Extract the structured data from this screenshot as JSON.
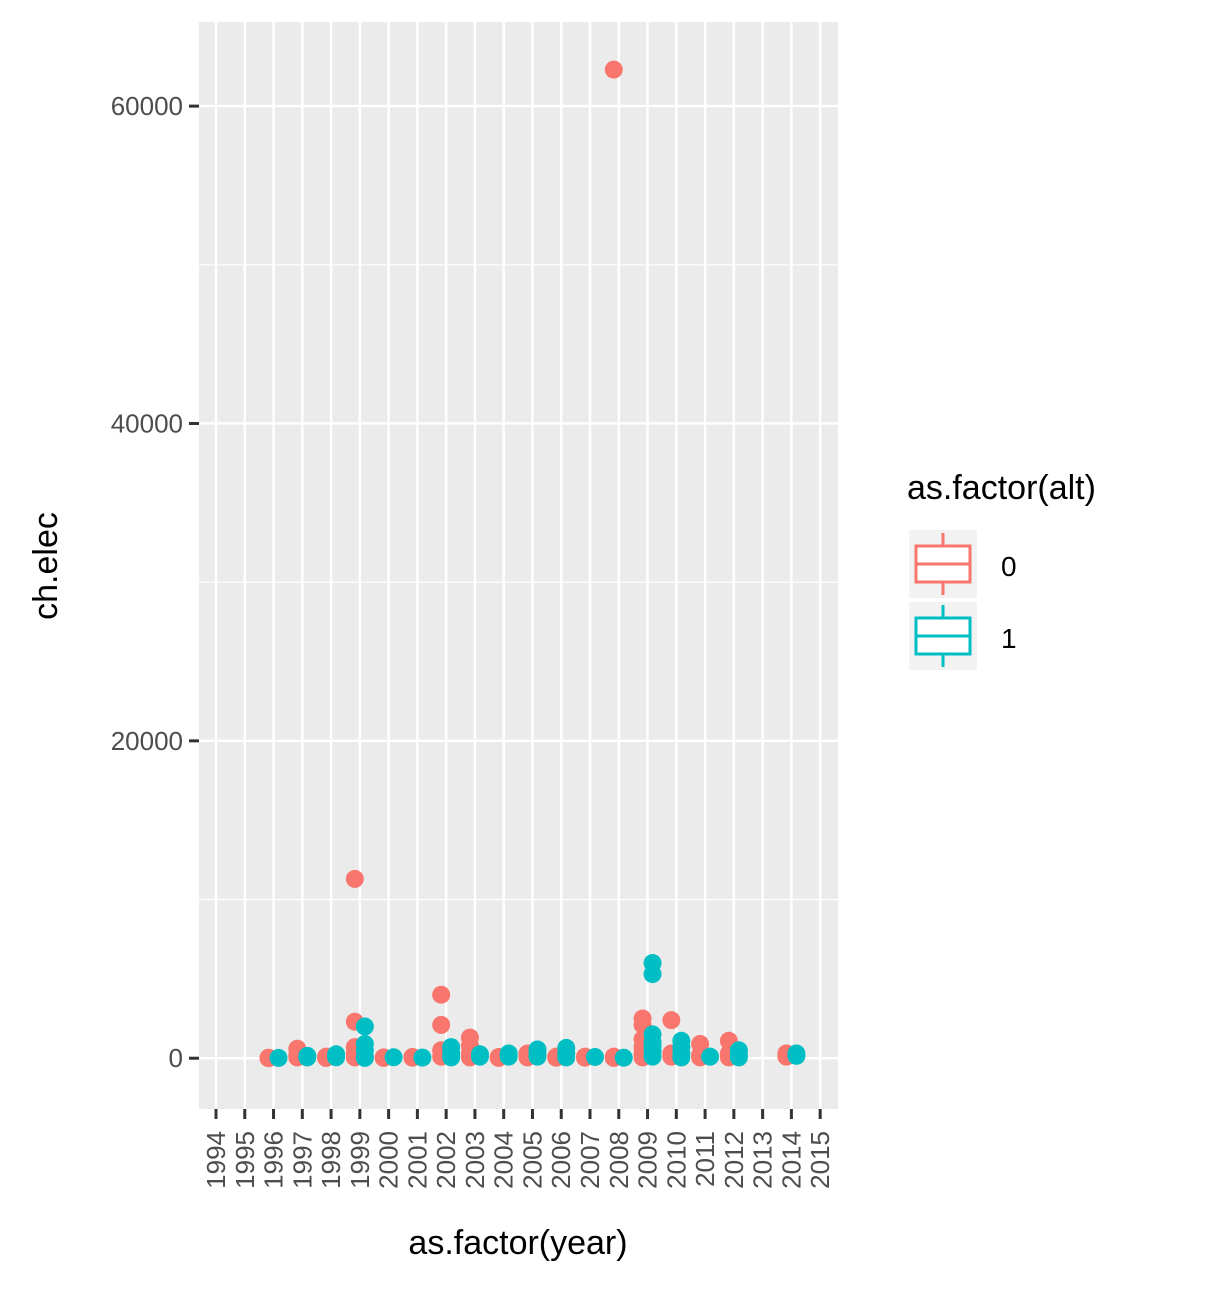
{
  "chart_data": {
    "type": "scatter",
    "xlabel": "as.factor(year)",
    "ylabel": "ch.elec",
    "categories": [
      "1994",
      "1995",
      "1996",
      "1997",
      "1998",
      "1999",
      "2000",
      "2001",
      "2002",
      "2003",
      "2004",
      "2005",
      "2006",
      "2007",
      "2008",
      "2009",
      "2010",
      "2011",
      "2012",
      "2013",
      "2014",
      "2015"
    ],
    "yticks": [
      0,
      20000,
      40000,
      60000
    ],
    "ytick_labels": [
      "0",
      "20000",
      "40000",
      "60000"
    ],
    "ylim": [
      -3200,
      65300
    ],
    "grid": true,
    "legend": {
      "title": "as.factor(alt)",
      "position": "right",
      "glyph": "boxplot",
      "entries": [
        {
          "label": "0",
          "color": "#F8766D"
        },
        {
          "label": "1",
          "color": "#00BFC4"
        }
      ]
    },
    "series": [
      {
        "name": "0",
        "color": "#F8766D",
        "points": [
          [
            "1996",
            0
          ],
          [
            "1996",
            30
          ],
          [
            "1997",
            50
          ],
          [
            "1997",
            600
          ],
          [
            "1997",
            200
          ],
          [
            "1998",
            100
          ],
          [
            "1998",
            20
          ],
          [
            "1999",
            11300
          ],
          [
            "1999",
            2300
          ],
          [
            "1999",
            700
          ],
          [
            "1999",
            300
          ],
          [
            "1999",
            50
          ],
          [
            "2000",
            50
          ],
          [
            "2000",
            20
          ],
          [
            "2001",
            30
          ],
          [
            "2001",
            80
          ],
          [
            "2002",
            4000
          ],
          [
            "2002",
            2100
          ],
          [
            "2002",
            500
          ],
          [
            "2002",
            100
          ],
          [
            "2003",
            1300
          ],
          [
            "2003",
            800
          ],
          [
            "2003",
            300
          ],
          [
            "2003",
            50
          ],
          [
            "2004",
            20
          ],
          [
            "2004",
            80
          ],
          [
            "2005",
            300
          ],
          [
            "2005",
            50
          ],
          [
            "2006",
            30
          ],
          [
            "2006",
            100
          ],
          [
            "2007",
            30
          ],
          [
            "2007",
            100
          ],
          [
            "2008",
            62300
          ],
          [
            "2008",
            100
          ],
          [
            "2008",
            20
          ],
          [
            "2009",
            2500
          ],
          [
            "2009",
            2100
          ],
          [
            "2009",
            1200
          ],
          [
            "2009",
            700
          ],
          [
            "2009",
            300
          ],
          [
            "2009",
            50
          ],
          [
            "2010",
            2400
          ],
          [
            "2010",
            300
          ],
          [
            "2010",
            100
          ],
          [
            "2011",
            900
          ],
          [
            "2011",
            200
          ],
          [
            "2011",
            50
          ],
          [
            "2012",
            1100
          ],
          [
            "2012",
            300
          ],
          [
            "2012",
            50
          ],
          [
            "2014",
            300
          ],
          [
            "2014",
            100
          ]
        ]
      },
      {
        "name": "1",
        "color": "#00BFC4",
        "points": [
          [
            "1996",
            20
          ],
          [
            "1997",
            50
          ],
          [
            "1997",
            150
          ],
          [
            "1998",
            60
          ],
          [
            "1998",
            250
          ],
          [
            "1999",
            2000
          ],
          [
            "1999",
            900
          ],
          [
            "1999",
            500
          ],
          [
            "1999",
            100
          ],
          [
            "1999",
            20
          ],
          [
            "2000",
            60
          ],
          [
            "2001",
            40
          ],
          [
            "2002",
            700
          ],
          [
            "2002",
            300
          ],
          [
            "2002",
            50
          ],
          [
            "2003",
            100
          ],
          [
            "2003",
            250
          ],
          [
            "2004",
            300
          ],
          [
            "2004",
            100
          ],
          [
            "2005",
            550
          ],
          [
            "2005",
            300
          ],
          [
            "2005",
            100
          ],
          [
            "2006",
            650
          ],
          [
            "2006",
            300
          ],
          [
            "2006",
            50
          ],
          [
            "2007",
            80
          ],
          [
            "2008",
            30
          ],
          [
            "2009",
            6000
          ],
          [
            "2009",
            5300
          ],
          [
            "2009",
            1500
          ],
          [
            "2009",
            1000
          ],
          [
            "2009",
            700
          ],
          [
            "2009",
            400
          ],
          [
            "2009",
            100
          ],
          [
            "2010",
            1100
          ],
          [
            "2010",
            700
          ],
          [
            "2010",
            300
          ],
          [
            "2010",
            50
          ],
          [
            "2011",
            100
          ],
          [
            "2012",
            500
          ],
          [
            "2012",
            200
          ],
          [
            "2012",
            50
          ],
          [
            "2014",
            300
          ],
          [
            "2014",
            150
          ]
        ]
      }
    ]
  }
}
